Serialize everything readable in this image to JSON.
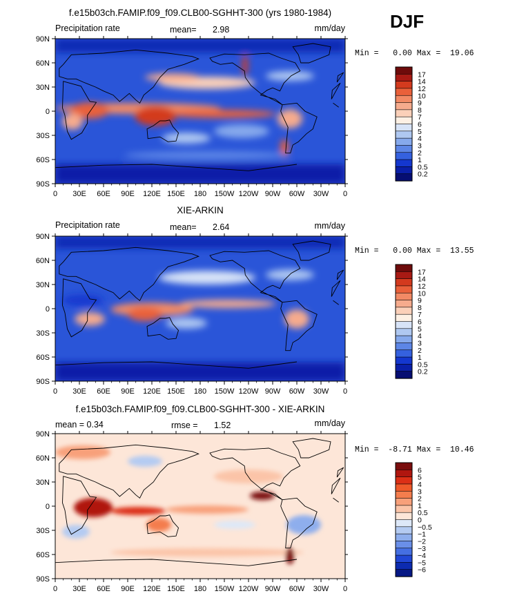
{
  "season_label": "DJF",
  "chart_data": [
    {
      "type": "heatmap",
      "title": "f.e15b03ch.FAMIP.f09_f09.CLB00-SGHHT-300 (yrs 1980-1984)",
      "field_label": "Precipitation rate",
      "stat_label": "mean=",
      "stat_value": "2.98",
      "units": "mm/day",
      "range_text": "Min =   0.00 Max =  19.06",
      "x_ticks": [
        "0",
        "30E",
        "60E",
        "90E",
        "120E",
        "150E",
        "180",
        "150W",
        "120W",
        "90W",
        "60W",
        "30W",
        "0"
      ],
      "y_ticks": [
        "90N",
        "60N",
        "30N",
        "0",
        "30S",
        "60S",
        "90S"
      ],
      "colorbar_labels": [
        "17",
        "14",
        "12",
        "10",
        "9",
        "8",
        "7",
        "6",
        "5",
        "4",
        "3",
        "2",
        "1",
        "0.5",
        "0.2"
      ],
      "colorbar_colors": [
        "#6e0b0b",
        "#a81a14",
        "#d33a1e",
        "#e9603a",
        "#f28a65",
        "#f6ab8d",
        "#fbd0b9",
        "#fdf0e4",
        "#d7e3f7",
        "#afc8f1",
        "#86a9ec",
        "#5d86e6",
        "#3561df",
        "#1437cf",
        "#0a1fa8",
        "#060e72"
      ]
    },
    {
      "type": "heatmap",
      "title": "XIE-ARKIN",
      "field_label": "Precipitation rate",
      "stat_label": "mean=",
      "stat_value": "2.64",
      "units": "mm/day",
      "range_text": "Min =   0.00 Max =  13.55",
      "x_ticks": [
        "0",
        "30E",
        "60E",
        "90E",
        "120E",
        "150E",
        "180",
        "150W",
        "120W",
        "90W",
        "60W",
        "30W",
        "0"
      ],
      "y_ticks": [
        "90N",
        "60N",
        "30N",
        "0",
        "30S",
        "60S",
        "90S"
      ],
      "colorbar_labels": [
        "17",
        "14",
        "12",
        "10",
        "9",
        "8",
        "7",
        "6",
        "5",
        "4",
        "3",
        "2",
        "1",
        "0.5",
        "0.2"
      ],
      "colorbar_colors": [
        "#6e0b0b",
        "#a81a14",
        "#d33a1e",
        "#e9603a",
        "#f28a65",
        "#f6ab8d",
        "#fbd0b9",
        "#fdf0e4",
        "#d7e3f7",
        "#afc8f1",
        "#86a9ec",
        "#5d86e6",
        "#3561df",
        "#1437cf",
        "#0a1fa8",
        "#060e72"
      ]
    },
    {
      "type": "heatmap",
      "title": "f.e15b03ch.FAMIP.f09_f09.CLB00-SGHHT-300 - XIE-ARKIN",
      "field_label": "mean =   0.34",
      "stat_label": "rmse =",
      "stat_value": "1.52",
      "units": "mm/day",
      "range_text": "Min =  -8.71 Max =  10.46",
      "x_ticks": [
        "0",
        "30E",
        "60E",
        "90E",
        "120E",
        "150E",
        "180",
        "150W",
        "120W",
        "90W",
        "60W",
        "30W",
        "0"
      ],
      "y_ticks": [
        "90N",
        "60N",
        "30N",
        "0",
        "30S",
        "60S",
        "90S"
      ],
      "colorbar_labels": [
        "6",
        "5",
        "4",
        "3",
        "2",
        "1",
        "0.5",
        "0",
        "−0.5",
        "−1",
        "−2",
        "−3",
        "−4",
        "−5",
        "−6"
      ],
      "colorbar_colors": [
        "#7a0d0d",
        "#b0160f",
        "#dc2f16",
        "#ef5a2a",
        "#f47d4d",
        "#f8a07a",
        "#fbc4a8",
        "#fde6d8",
        "#dde8f8",
        "#b4cbf2",
        "#8eaeed",
        "#6a8fe8",
        "#456fe2",
        "#2147d5",
        "#0c2bb0",
        "#061885"
      ]
    }
  ]
}
